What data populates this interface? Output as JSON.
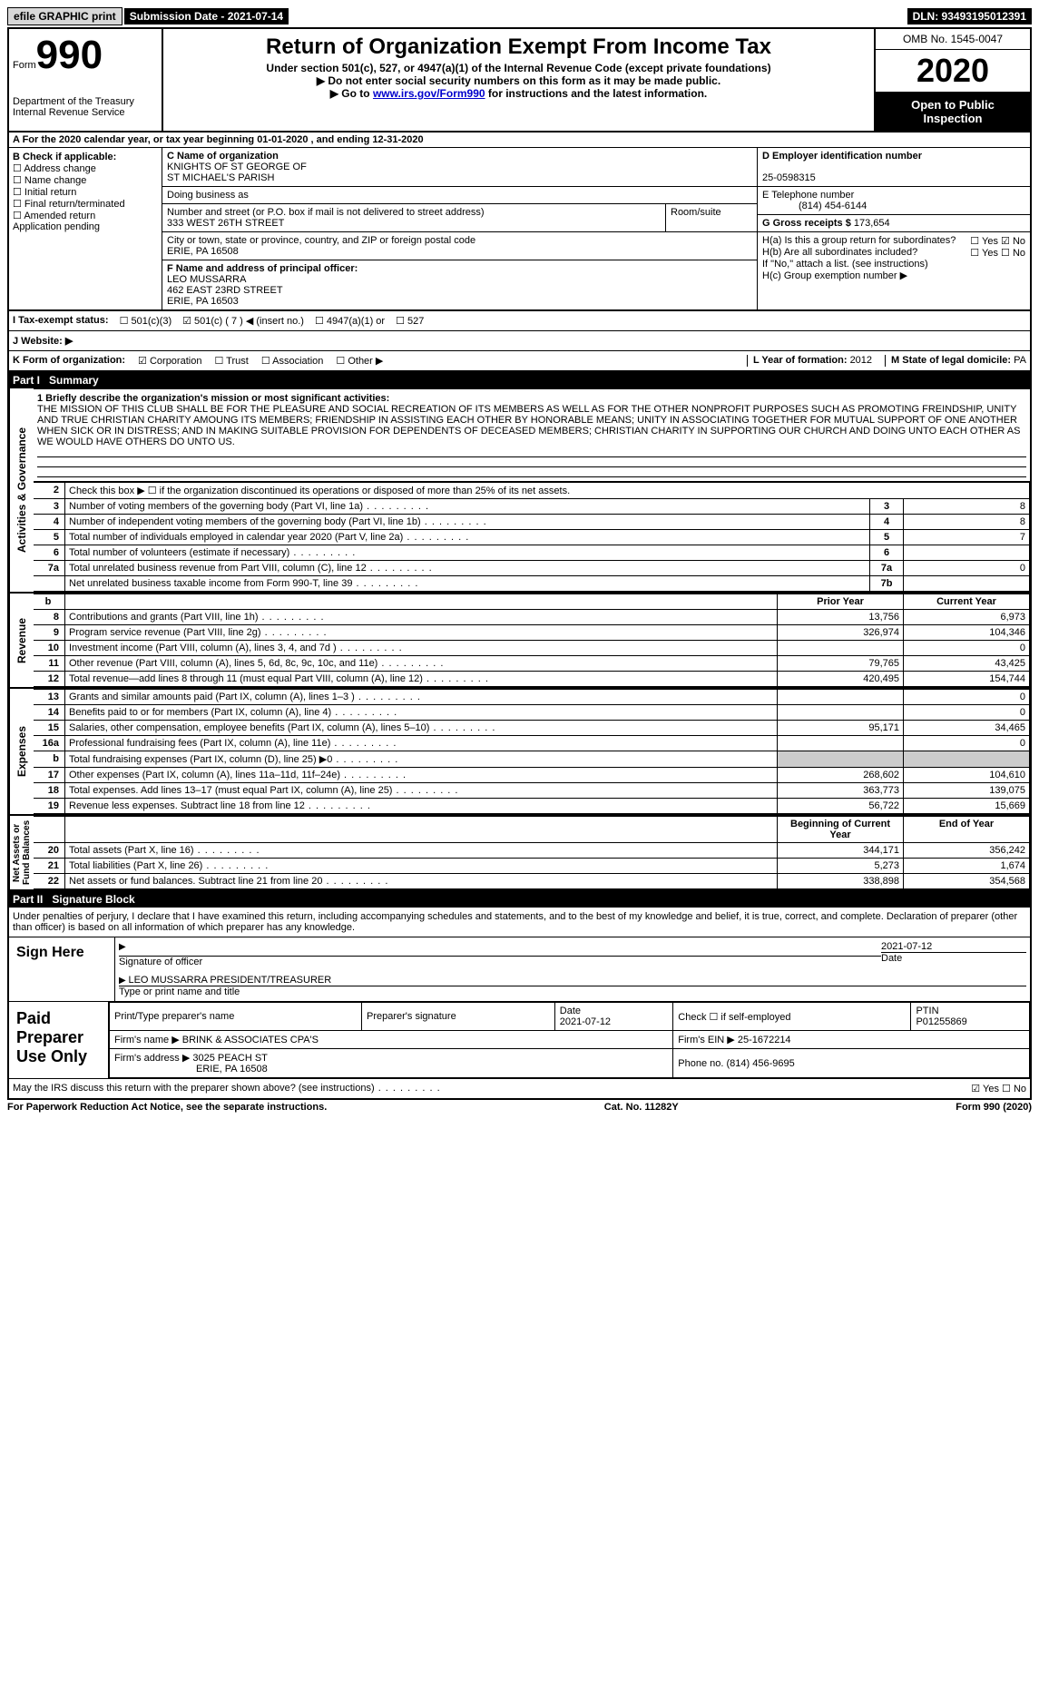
{
  "topbar": {
    "efile": "efile GRAPHIC print",
    "submission": "Submission Date - 2021-07-14",
    "dln": "DLN: 93493195012391"
  },
  "header": {
    "form_word": "Form",
    "form_num": "990",
    "title": "Return of Organization Exempt From Income Tax",
    "subtitle": "Under section 501(c), 527, or 4947(a)(1) of the Internal Revenue Code (except private foundations)",
    "note1": "▶ Do not enter social security numbers on this form as it may be made public.",
    "note2_pre": "▶ Go to ",
    "note2_link": "www.irs.gov/Form990",
    "note2_post": " for instructions and the latest information.",
    "dept": "Department of the Treasury\nInternal Revenue Service",
    "omb": "OMB No. 1545-0047",
    "year": "2020",
    "open": "Open to Public Inspection"
  },
  "row_a": "A For the 2020 calendar year, or tax year beginning 01-01-2020  , and ending 12-31-2020",
  "box_b": {
    "title": "B Check if applicable:",
    "items": [
      "Address change",
      "Name change",
      "Initial return",
      "Final return/terminated",
      "Amended return",
      "Application pending"
    ]
  },
  "box_c": {
    "label": "C Name of organization",
    "name1": "KNIGHTS OF ST GEORGE OF",
    "name2": "ST MICHAEL'S PARISH",
    "dba_label": "Doing business as",
    "addr_label": "Number and street (or P.O. box if mail is not delivered to street address)",
    "room_label": "Room/suite",
    "addr": "333 WEST 26TH STREET",
    "city_label": "City or town, state or province, country, and ZIP or foreign postal code",
    "city": "ERIE, PA  16508"
  },
  "box_d": {
    "label": "D Employer identification number",
    "val": "25-0598315"
  },
  "box_e": {
    "label": "E Telephone number",
    "val": "(814) 454-6144"
  },
  "box_g": {
    "label": "G Gross receipts $",
    "val": "173,654"
  },
  "box_f": {
    "label": "F  Name and address of principal officer:",
    "name": "LEO MUSSARRA",
    "addr1": "462 EAST 23RD STREET",
    "addr2": "ERIE, PA  16503"
  },
  "box_h": {
    "a_label": "H(a)  Is this a group return for subordinates?",
    "b_label": "H(b)  Are all subordinates included?",
    "b_note": "If \"No,\" attach a list. (see instructions)",
    "c_label": "H(c)  Group exemption number ▶",
    "yes": "Yes",
    "no": "No"
  },
  "box_i": {
    "label": "I  Tax-exempt status:",
    "opts": [
      "501(c)(3)",
      "501(c) ( 7 ) ◀ (insert no.)",
      "4947(a)(1) or",
      "527"
    ]
  },
  "box_j": {
    "label": "J  Website: ▶"
  },
  "box_k": {
    "label": "K Form of organization:",
    "opts": [
      "Corporation",
      "Trust",
      "Association",
      "Other ▶"
    ]
  },
  "box_l": {
    "label": "L Year of formation:",
    "val": "2012"
  },
  "box_m": {
    "label": "M State of legal domicile:",
    "val": "PA"
  },
  "part1": {
    "num": "Part I",
    "title": "Summary"
  },
  "mission": {
    "label": "1    Briefly describe the organization's mission or most significant activities:",
    "text": "THE MISSION OF THIS CLUB SHALL BE FOR THE PLEASURE AND SOCIAL RECREATION OF ITS MEMBERS AS WELL AS FOR THE OTHER NONPROFIT PURPOSES SUCH AS PROMOTING FREINDSHIP, UNITY AND TRUE CHRISTIAN CHARITY AMOUNG ITS MEMBERS; FRIENDSHIP IN ASSISTING EACH OTHER BY HONORABLE MEANS; UNITY IN ASSOCIATING TOGETHER FOR MUTUAL SUPPORT OF ONE ANOTHER WHEN SICK OR IN DISTRESS; AND IN MAKING SUITABLE PROVISION FOR DEPENDENTS OF DECEASED MEMBERS; CHRISTIAN CHARITY IN SUPPORTING OUR CHURCH AND DOING UNTO EACH OTHER AS WE WOULD HAVE OTHERS DO UNTO US."
  },
  "gov_lines": [
    {
      "n": "2",
      "t": "Check this box ▶ ☐ if the organization discontinued its operations or disposed of more than 25% of its net assets."
    },
    {
      "n": "3",
      "t": "Number of voting members of the governing body (Part VI, line 1a)",
      "box": "3",
      "v": "8"
    },
    {
      "n": "4",
      "t": "Number of independent voting members of the governing body (Part VI, line 1b)",
      "box": "4",
      "v": "8"
    },
    {
      "n": "5",
      "t": "Total number of individuals employed in calendar year 2020 (Part V, line 2a)",
      "box": "5",
      "v": "7"
    },
    {
      "n": "6",
      "t": "Total number of volunteers (estimate if necessary)",
      "box": "6",
      "v": ""
    },
    {
      "n": "7a",
      "t": "Total unrelated business revenue from Part VIII, column (C), line 12",
      "box": "7a",
      "v": "0"
    },
    {
      "n": "",
      "t": "Net unrelated business taxable income from Form 990-T, line 39",
      "box": "7b",
      "v": ""
    }
  ],
  "col_hdr": {
    "prior": "Prior Year",
    "current": "Current Year"
  },
  "rev_lines": [
    {
      "n": "8",
      "t": "Contributions and grants (Part VIII, line 1h)",
      "p": "13,756",
      "c": "6,973"
    },
    {
      "n": "9",
      "t": "Program service revenue (Part VIII, line 2g)",
      "p": "326,974",
      "c": "104,346"
    },
    {
      "n": "10",
      "t": "Investment income (Part VIII, column (A), lines 3, 4, and 7d )",
      "p": "",
      "c": "0"
    },
    {
      "n": "11",
      "t": "Other revenue (Part VIII, column (A), lines 5, 6d, 8c, 9c, 10c, and 11e)",
      "p": "79,765",
      "c": "43,425"
    },
    {
      "n": "12",
      "t": "Total revenue—add lines 8 through 11 (must equal Part VIII, column (A), line 12)",
      "p": "420,495",
      "c": "154,744"
    }
  ],
  "exp_lines": [
    {
      "n": "13",
      "t": "Grants and similar amounts paid (Part IX, column (A), lines 1–3 )",
      "p": "",
      "c": "0"
    },
    {
      "n": "14",
      "t": "Benefits paid to or for members (Part IX, column (A), line 4)",
      "p": "",
      "c": "0"
    },
    {
      "n": "15",
      "t": "Salaries, other compensation, employee benefits (Part IX, column (A), lines 5–10)",
      "p": "95,171",
      "c": "34,465"
    },
    {
      "n": "16a",
      "t": "Professional fundraising fees (Part IX, column (A), line 11e)",
      "p": "",
      "c": "0"
    },
    {
      "n": "b",
      "t": "Total fundraising expenses (Part IX, column (D), line 25) ▶0",
      "p": "shade",
      "c": "shade"
    },
    {
      "n": "17",
      "t": "Other expenses (Part IX, column (A), lines 11a–11d, 11f–24e)",
      "p": "268,602",
      "c": "104,610"
    },
    {
      "n": "18",
      "t": "Total expenses. Add lines 13–17 (must equal Part IX, column (A), line 25)",
      "p": "363,773",
      "c": "139,075"
    },
    {
      "n": "19",
      "t": "Revenue less expenses. Subtract line 18 from line 12",
      "p": "56,722",
      "c": "15,669"
    }
  ],
  "na_hdr": {
    "begin": "Beginning of Current Year",
    "end": "End of Year"
  },
  "na_lines": [
    {
      "n": "20",
      "t": "Total assets (Part X, line 16)",
      "p": "344,171",
      "c": "356,242"
    },
    {
      "n": "21",
      "t": "Total liabilities (Part X, line 26)",
      "p": "5,273",
      "c": "1,674"
    },
    {
      "n": "22",
      "t": "Net assets or fund balances. Subtract line 21 from line 20",
      "p": "338,898",
      "c": "354,568"
    }
  ],
  "vlabels": {
    "gov": "Activities & Governance",
    "rev": "Revenue",
    "exp": "Expenses",
    "na": "Net Assets or\nFund Balances"
  },
  "part2": {
    "num": "Part II",
    "title": "Signature Block"
  },
  "sig": {
    "perjury": "Under penalties of perjury, I declare that I have examined this return, including accompanying schedules and statements, and to the best of my knowledge and belief, it is true, correct, and complete. Declaration of preparer (other than officer) is based on all information of which preparer has any knowledge.",
    "sign_here": "Sign Here",
    "sig_officer": "Signature of officer",
    "date": "2021-07-12",
    "date_lbl": "Date",
    "name_title": "LEO MUSSARRA  PRESIDENT/TREASURER",
    "type_name": "Type or print name and title",
    "paid": "Paid Preparer Use Only",
    "print_name_lbl": "Print/Type preparer's name",
    "prep_sig_lbl": "Preparer's signature",
    "prep_date": "2021-07-12",
    "check_self": "Check ☐ if self-employed",
    "ptin_lbl": "PTIN",
    "ptin": "P01255869",
    "firm_name_lbl": "Firm's name    ▶",
    "firm_name": "BRINK & ASSOCIATES CPA'S",
    "firm_ein_lbl": "Firm's EIN ▶",
    "firm_ein": "25-1672214",
    "firm_addr_lbl": "Firm's address ▶",
    "firm_addr1": "3025 PEACH ST",
    "firm_addr2": "ERIE, PA  16508",
    "phone_lbl": "Phone no.",
    "phone": "(814) 456-9695",
    "discuss": "May the IRS discuss this return with the preparer shown above? (see instructions)"
  },
  "footer": {
    "left": "For Paperwork Reduction Act Notice, see the separate instructions.",
    "mid": "Cat. No. 11282Y",
    "right": "Form 990 (2020)"
  }
}
